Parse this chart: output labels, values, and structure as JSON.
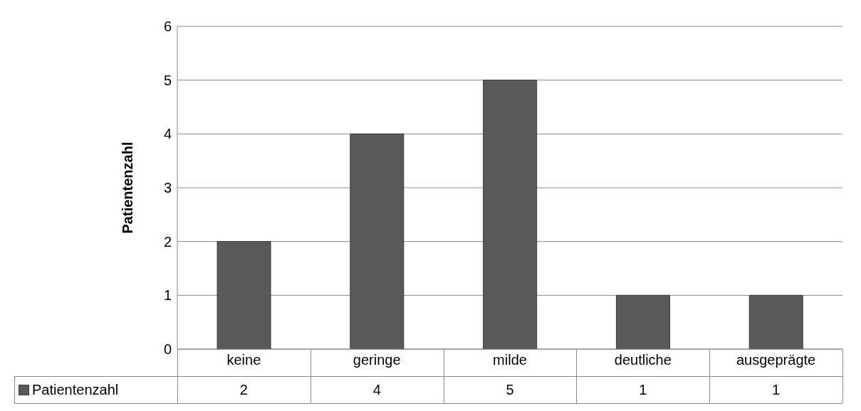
{
  "chart_data": {
    "type": "bar",
    "ylabel": "Patientenzahl",
    "categories": [
      "keine",
      "geringe",
      "milde",
      "deutliche",
      "ausgeprägte"
    ],
    "series": [
      {
        "name": "Patientenzahl",
        "color": "#595959",
        "values": [
          2,
          4,
          5,
          1,
          1
        ]
      }
    ],
    "ylim": [
      0,
      6
    ],
    "yticks": [
      0,
      1,
      2,
      3,
      4,
      5,
      6
    ],
    "grid": "y",
    "legend": "bottom",
    "data_labels": true
  }
}
